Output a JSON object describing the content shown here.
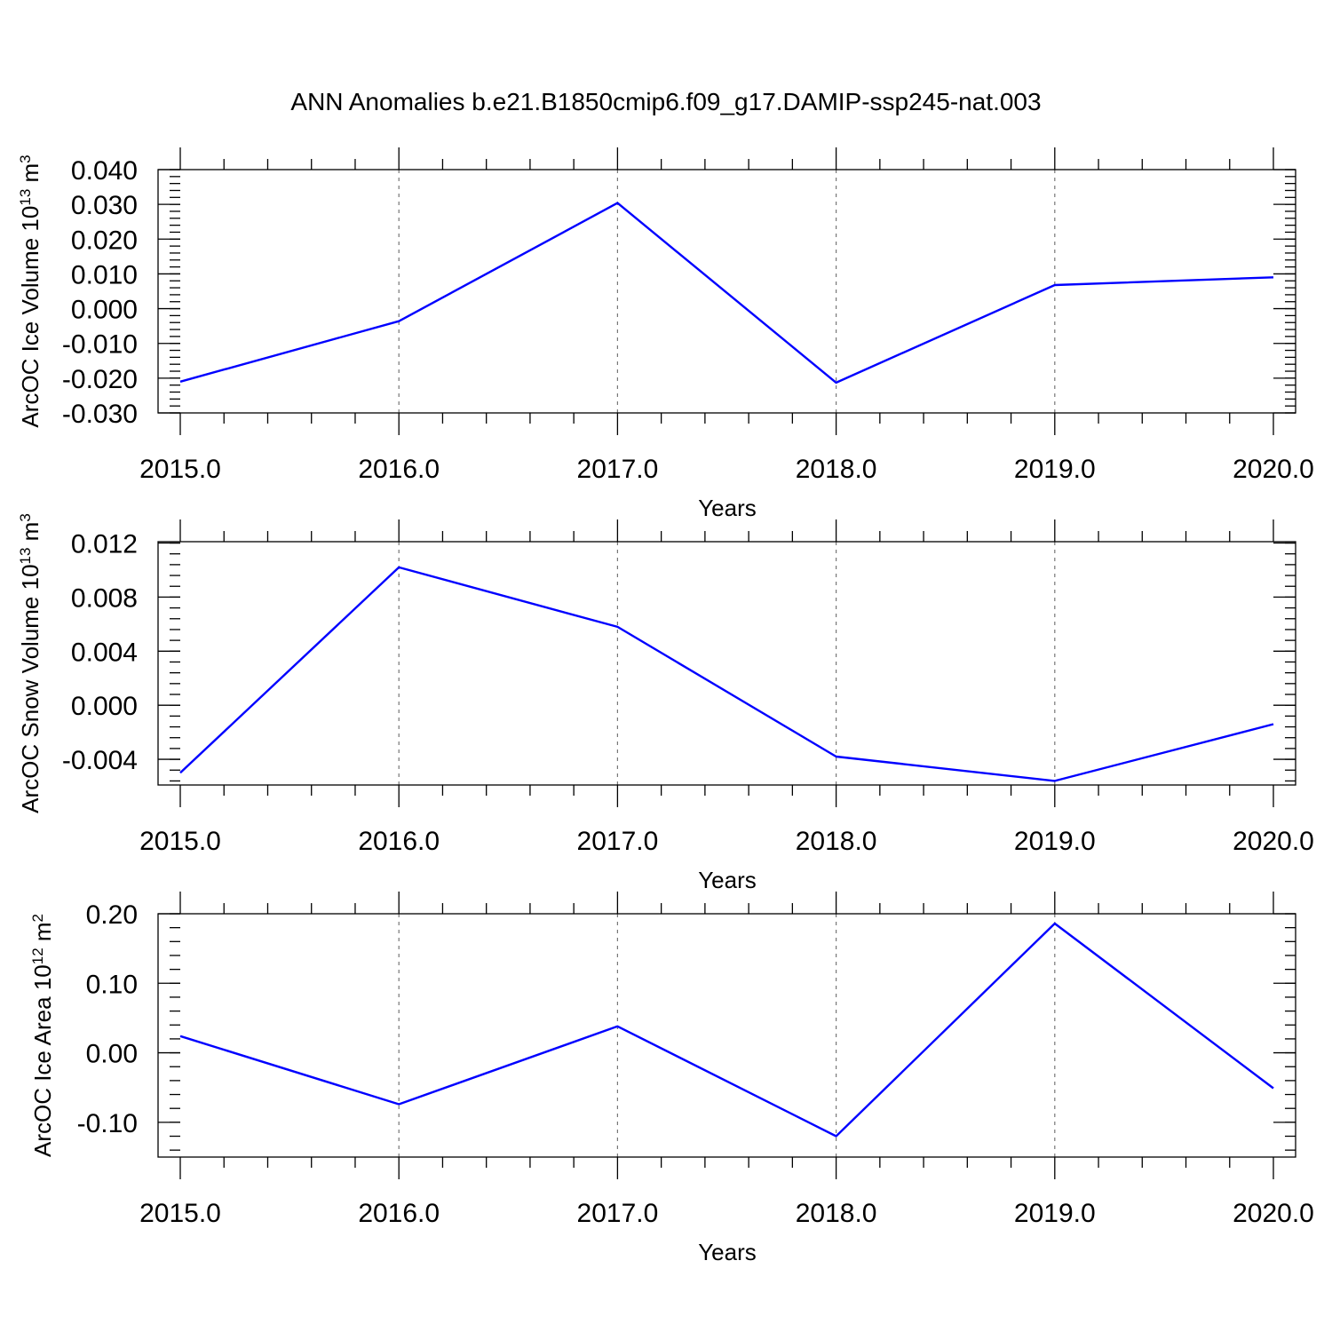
{
  "figure": {
    "title": "ANN Anomalies b.e21.B1850cmip6.f09_g17.DAMIP-ssp245-nat.003",
    "series_color": "#0000ff"
  },
  "chart_data": [
    {
      "type": "line",
      "title": "",
      "xlabel": "Years",
      "ylabel": {
        "main": "ArcOC Ice Volume 10",
        "exp": "13",
        "unit": " m",
        "unit_exp": "3"
      },
      "xlim": [
        2015.0,
        2020.0
      ],
      "ylim": [
        -0.03,
        0.04
      ],
      "xticks": [
        2015.0,
        2016.0,
        2017.0,
        2018.0,
        2019.0,
        2020.0
      ],
      "xtick_labels": [
        "2015.0",
        "2016.0",
        "2017.0",
        "2018.0",
        "2019.0",
        "2020.0"
      ],
      "yticks": [
        -0.03,
        -0.02,
        -0.01,
        0.0,
        0.01,
        0.02,
        0.03,
        0.04
      ],
      "ytick_labels": [
        "-0.030",
        "-0.020",
        "-0.010",
        "0.000",
        "0.010",
        "0.020",
        "0.030",
        "0.040"
      ],
      "grid": "vertical dashed at major x ticks",
      "x": [
        2015,
        2016,
        2017,
        2018,
        2019,
        2020
      ],
      "series": [
        {
          "values": [
            -0.021,
            -0.0036,
            0.0304,
            -0.0213,
            0.0068,
            0.009
          ]
        }
      ]
    },
    {
      "type": "line",
      "title": "",
      "xlabel": "Years",
      "ylabel": {
        "main": "ArcOC Snow Volume 10",
        "exp": "13",
        "unit": " m",
        "unit_exp": "3"
      },
      "xlim": [
        2015.0,
        2020.0
      ],
      "ylim": [
        -0.0059,
        0.0121
      ],
      "xticks": [
        2015.0,
        2016.0,
        2017.0,
        2018.0,
        2019.0,
        2020.0
      ],
      "xtick_labels": [
        "2015.0",
        "2016.0",
        "2017.0",
        "2018.0",
        "2019.0",
        "2020.0"
      ],
      "yticks": [
        -0.004,
        0.0,
        0.004,
        0.008,
        0.012
      ],
      "ytick_labels": [
        "-0.004",
        "0.000",
        "0.004",
        "0.008",
        "0.012"
      ],
      "grid": "vertical dashed at major x ticks",
      "x": [
        2015,
        2016,
        2017,
        2018,
        2019,
        2020
      ],
      "series": [
        {
          "values": [
            -0.005,
            0.0102,
            0.0058,
            -0.0038,
            -0.0056,
            -0.0014
          ]
        }
      ]
    },
    {
      "type": "line",
      "title": "",
      "xlabel": "Years",
      "ylabel": {
        "main": "ArcOC Ice Area 10",
        "exp": "12",
        "unit": " m",
        "unit_exp": "2"
      },
      "xlim": [
        2015.0,
        2020.0
      ],
      "ylim": [
        -0.15,
        0.2
      ],
      "xticks": [
        2015.0,
        2016.0,
        2017.0,
        2018.0,
        2019.0,
        2020.0
      ],
      "xtick_labels": [
        "2015.0",
        "2016.0",
        "2017.0",
        "2018.0",
        "2019.0",
        "2020.0"
      ],
      "yticks": [
        -0.1,
        0.0,
        0.1,
        0.2
      ],
      "ytick_labels": [
        "-0.10",
        "0.00",
        "0.10",
        "0.20"
      ],
      "grid": "vertical dashed at major x ticks",
      "x": [
        2015,
        2016,
        2017,
        2018,
        2019,
        2020
      ],
      "series": [
        {
          "values": [
            0.024,
            -0.074,
            0.038,
            -0.12,
            0.186,
            -0.051
          ]
        }
      ]
    }
  ]
}
